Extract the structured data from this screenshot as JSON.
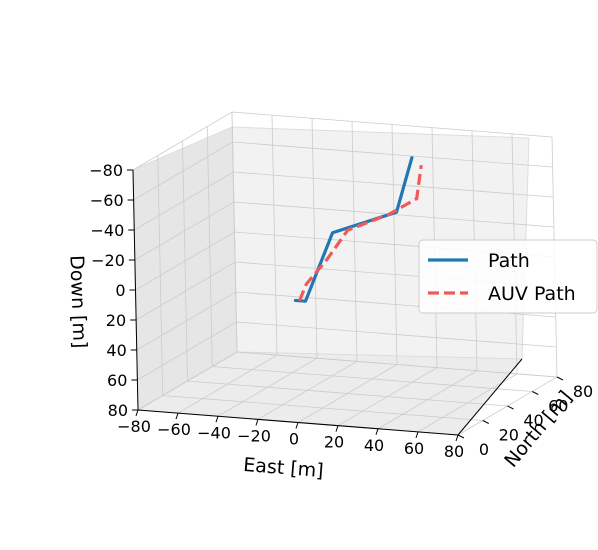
{
  "chart_data": {
    "type": "line",
    "projection": "3d",
    "xlabel": "East [m]",
    "ylabel": "North [m]",
    "zlabel": "Down [m]",
    "xlim": [
      -80,
      80
    ],
    "ylim": [
      0,
      80
    ],
    "zlim": [
      -80,
      80
    ],
    "z_inverted": true,
    "x_ticks": [
      "−80",
      "−60",
      "−40",
      "−20",
      "0",
      "20",
      "40",
      "60",
      "80"
    ],
    "y_ticks": [
      "0",
      "20",
      "40",
      "60",
      "80"
    ],
    "z_ticks": [
      "−80",
      "−60",
      "−40",
      "−20",
      "0",
      "20",
      "40",
      "60",
      "80"
    ],
    "grid": true,
    "legend_position": "right",
    "colors": {
      "path": "#1f77b4",
      "auv_path": "#ef5b5b",
      "pane": "#f2f2f2",
      "grid": "#cccccc"
    },
    "series": [
      {
        "name": "Path",
        "style": "solid",
        "points": [
          [
            -5,
            8,
            3
          ],
          [
            0,
            8,
            3
          ],
          [
            13,
            10,
            -43
          ],
          [
            44,
            12,
            -59
          ],
          [
            51,
            14,
            -95
          ]
        ]
      },
      {
        "name": "AUV Path",
        "style": "dashed",
        "points": [
          [
            -3,
            8,
            3
          ],
          [
            0,
            9,
            -8
          ],
          [
            10,
            10,
            -25
          ],
          [
            20,
            11,
            -45
          ],
          [
            40,
            12,
            -57
          ],
          [
            53,
            14,
            -68
          ],
          [
            55,
            15,
            -90
          ]
        ]
      }
    ]
  }
}
